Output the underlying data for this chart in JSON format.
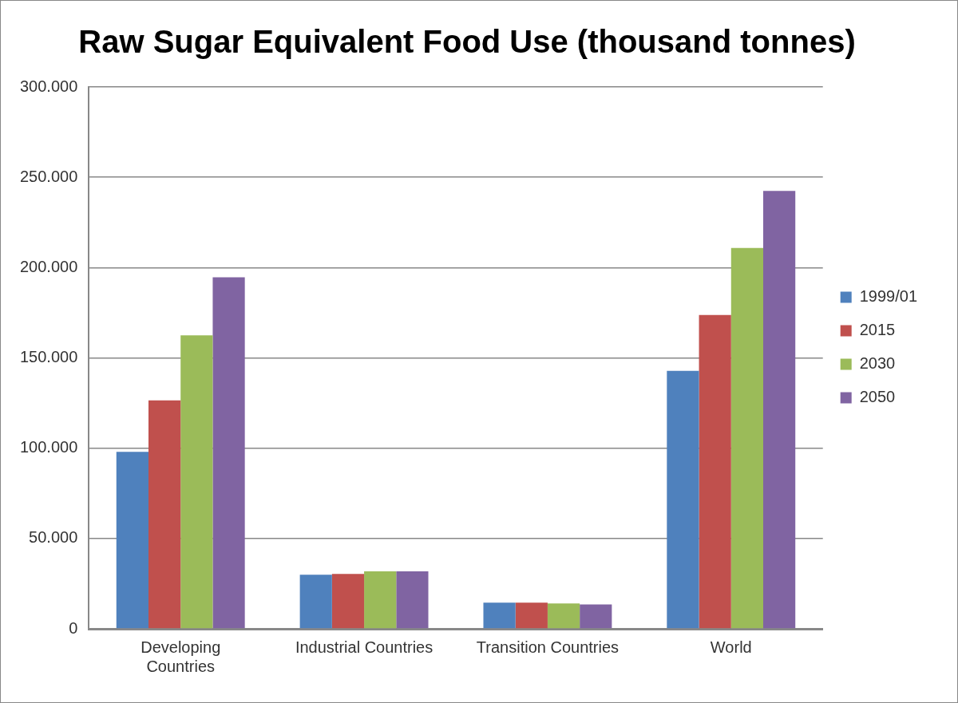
{
  "chart_data": {
    "type": "bar",
    "title": "Raw Sugar Equivalent Food Use (thousand tonnes)",
    "categories": [
      "Developing Countries",
      "Industrial Countries",
      "Transition Countries",
      "World"
    ],
    "series": [
      {
        "name": "1999/01",
        "color": "#4f81bd",
        "values": [
          98000,
          29900,
          14500,
          142800
        ]
      },
      {
        "name": "2015",
        "color": "#c0504d",
        "values": [
          126500,
          30400,
          14500,
          173800
        ]
      },
      {
        "name": "2030",
        "color": "#9bbb59",
        "values": [
          162500,
          31800,
          14000,
          210900
        ]
      },
      {
        "name": "2050",
        "color": "#8064a2",
        "values": [
          194600,
          31800,
          13500,
          242400
        ]
      }
    ],
    "ylim": [
      0,
      300000
    ],
    "yticks": [
      0,
      {
        "value": 50000,
        "label": "50.000"
      },
      {
        "value": 100000,
        "label": "100.000"
      },
      {
        "value": 150000,
        "label": "150.000"
      },
      {
        "value": 200000,
        "label": "200.000"
      },
      {
        "value": 250000,
        "label": "250.000"
      },
      {
        "value": 300000,
        "label": "300.000"
      }
    ],
    "grid": "y",
    "legend": "right"
  }
}
